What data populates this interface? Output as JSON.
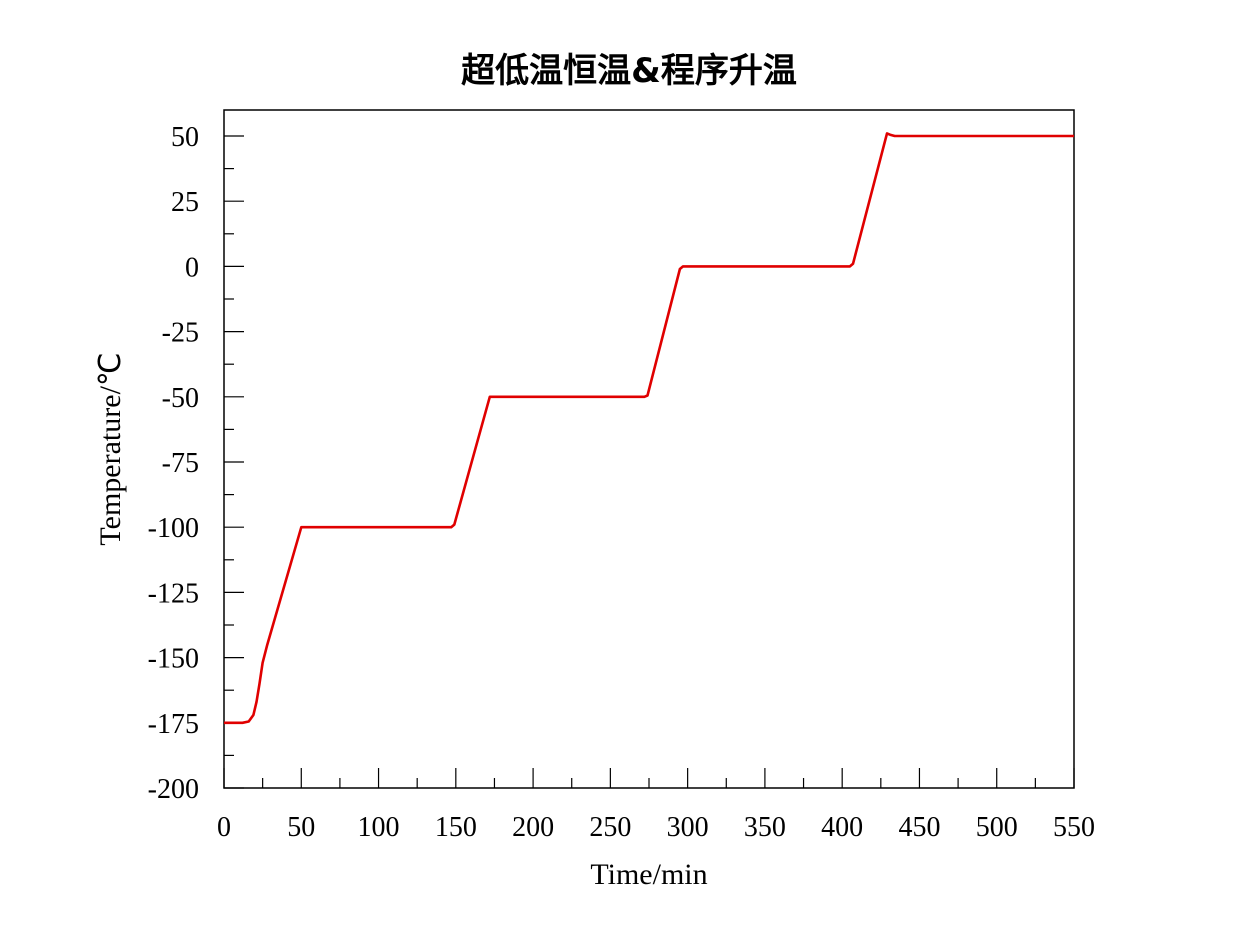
{
  "chart_data": {
    "type": "line",
    "title": "超低温恒温&程序升温",
    "xlabel": "Time/min",
    "ylabel": "Temperature/℃",
    "xlim": [
      0,
      550
    ],
    "ylim": [
      -200,
      60
    ],
    "x_ticks": [
      0,
      50,
      100,
      150,
      200,
      250,
      300,
      350,
      400,
      450,
      500,
      550
    ],
    "x_tick_labels": [
      "0",
      "50",
      "100",
      "150",
      "200",
      "250",
      "300",
      "350",
      "400",
      "450",
      "500",
      "550"
    ],
    "y_ticks": [
      50,
      25,
      0,
      -25,
      -50,
      -75,
      -100,
      -125,
      -150,
      -175,
      -200
    ],
    "y_tick_labels": [
      "50",
      "25",
      "0",
      "-25",
      "-50",
      "-75",
      "-100",
      "-125",
      "-150",
      "-175",
      "-200"
    ],
    "grid": false,
    "series": [
      {
        "color": "#e00000",
        "x": [
          0,
          12,
          16,
          19,
          21,
          23,
          25,
          28,
          50,
          147,
          149,
          172,
          174,
          272,
          274,
          295,
          297,
          405,
          407,
          429,
          431,
          434,
          550
        ],
        "y": [
          -175,
          -175,
          -174.5,
          -172,
          -167,
          -160,
          -152,
          -145,
          -100,
          -100,
          -99,
          -50,
          -50,
          -50,
          -49.5,
          -1,
          0,
          0,
          1,
          51,
          50.5,
          50,
          50
        ]
      }
    ]
  }
}
